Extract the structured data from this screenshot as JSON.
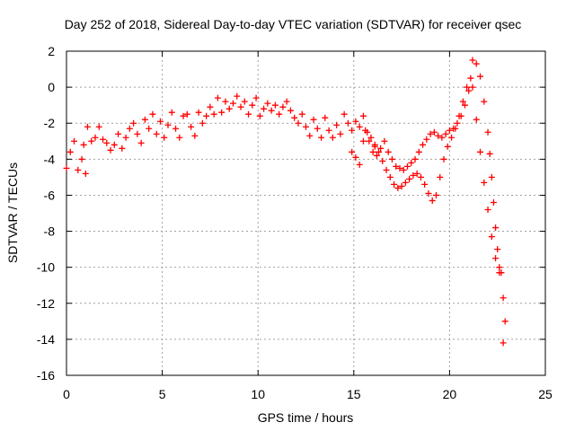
{
  "chart_data": {
    "type": "scatter",
    "title": "Day 252 of 2018, Sidereal Day-to-day VTEC variation (SDTVAR) for receiver qsec",
    "xlabel": "GPS time / hours",
    "ylabel": "SDTVAR / TECUs",
    "xlim": [
      0,
      25
    ],
    "ylim": [
      -16,
      2
    ],
    "xticks": [
      0,
      5,
      10,
      15,
      20,
      25
    ],
    "xtick_labels": [
      "0",
      "5",
      "10",
      "15",
      "20",
      "25"
    ],
    "yticks": [
      -16,
      -14,
      -12,
      -10,
      -8,
      -6,
      -4,
      -2,
      0,
      2
    ],
    "ytick_labels": [
      "-16",
      "-14",
      "-12",
      "-10",
      "-8",
      "-6",
      "-4",
      "-2",
      "0",
      "2"
    ],
    "grid": true,
    "marker": "+",
    "series": [
      {
        "name": "SDTVAR",
        "color": "#ff0000",
        "x": [
          0.0,
          0.2,
          0.4,
          0.6,
          0.8,
          0.9,
          1.0,
          1.1,
          1.3,
          1.5,
          1.7,
          1.9,
          2.1,
          2.3,
          2.5,
          2.7,
          2.9,
          3.1,
          3.3,
          3.5,
          3.7,
          3.9,
          4.1,
          4.3,
          4.5,
          4.7,
          4.9,
          5.1,
          5.3,
          5.5,
          5.7,
          5.9,
          6.1,
          6.3,
          6.5,
          6.7,
          6.9,
          7.1,
          7.3,
          7.5,
          7.7,
          7.9,
          8.1,
          8.3,
          8.5,
          8.7,
          8.9,
          9.1,
          9.3,
          9.5,
          9.7,
          9.9,
          10.1,
          10.3,
          10.5,
          10.7,
          10.9,
          11.1,
          11.3,
          11.5,
          11.7,
          11.9,
          12.1,
          12.3,
          12.5,
          12.7,
          12.9,
          13.1,
          13.3,
          13.5,
          13.7,
          13.9,
          14.1,
          14.3,
          14.5,
          14.7,
          14.9,
          15.1,
          15.3,
          15.5,
          15.6,
          15.8,
          16.0,
          16.1,
          16.2,
          16.4,
          16.6,
          16.8,
          17.0,
          17.2,
          17.4,
          17.6,
          17.8,
          18.0,
          18.2,
          18.4,
          18.6,
          18.8,
          19.0,
          19.2,
          19.4,
          19.6,
          19.8,
          20.0,
          20.2,
          20.4,
          20.6,
          20.8,
          21.0,
          21.2,
          21.4,
          21.6,
          21.8,
          22.0,
          22.1,
          22.2,
          22.3,
          22.4,
          22.5,
          22.6,
          22.7,
          22.8,
          22.9
        ],
        "y": [
          -4.5,
          -3.6,
          -3.0,
          -4.6,
          -4.0,
          -3.2,
          -4.8,
          -2.2,
          -3.0,
          -2.8,
          -2.2,
          -2.9,
          -3.1,
          -3.5,
          -3.2,
          -2.6,
          -3.4,
          -2.8,
          -2.3,
          -2.0,
          -2.6,
          -3.1,
          -1.8,
          -2.3,
          -1.5,
          -2.6,
          -1.9,
          -2.8,
          -2.1,
          -1.4,
          -2.3,
          -2.8,
          -1.6,
          -1.5,
          -2.2,
          -2.7,
          -1.4,
          -2.0,
          -1.6,
          -1.1,
          -1.5,
          -0.6,
          -1.4,
          -0.8,
          -1.2,
          -0.9,
          -0.5,
          -1.1,
          -0.8,
          -1.5,
          -1.0,
          -0.6,
          -1.6,
          -1.2,
          -0.9,
          -1.3,
          -1.0,
          -1.5,
          -1.1,
          -0.8,
          -1.3,
          -1.7,
          -2.0,
          -1.5,
          -2.2,
          -2.7,
          -1.8,
          -2.3,
          -2.8,
          -1.7,
          -2.4,
          -2.8,
          -2.1,
          -2.6,
          -1.5,
          -2.0,
          -2.4,
          -1.9,
          -2.2,
          -1.6,
          -2.4,
          -3.0,
          -3.6,
          -3.3,
          -3.8,
          -3.4,
          -3.0,
          -3.6,
          -4.0,
          -4.4,
          -4.5,
          -4.6,
          -4.4,
          -4.2,
          -4.0,
          -3.6,
          -3.2,
          -2.9,
          -2.6,
          -2.5,
          -2.7,
          -2.8,
          -2.6,
          -2.4,
          -2.3,
          -2.0,
          -1.6,
          -1.0,
          -0.2,
          1.5,
          1.3,
          0.6,
          -0.8,
          -2.5,
          -3.7,
          -5.0,
          -6.4,
          -7.8,
          -9.0,
          -10.0,
          -10.3,
          -11.7,
          -13.0
        ],
        "x2": [
          14.9,
          15.1,
          15.3,
          15.5,
          15.7,
          15.9,
          16.1,
          16.3,
          16.5,
          16.7,
          16.9,
          17.1,
          17.3,
          17.5,
          17.7,
          17.9,
          18.1,
          18.3,
          18.5,
          18.7,
          18.9,
          19.1,
          19.3,
          19.5,
          19.7,
          19.9,
          20.1,
          20.3,
          20.5,
          20.7,
          20.9,
          21.1,
          21.2,
          21.4,
          21.6,
          21.8,
          22.0,
          22.2,
          22.4,
          22.6,
          22.8
        ],
        "y2": [
          -3.6,
          -3.9,
          -4.3,
          -3.0,
          -2.5,
          -2.8,
          -3.2,
          -3.6,
          -4.1,
          -4.6,
          -5.0,
          -5.4,
          -5.6,
          -5.5,
          -5.3,
          -5.1,
          -4.9,
          -4.8,
          -5.0,
          -5.4,
          -5.9,
          -6.3,
          -6.0,
          -5.0,
          -4.0,
          -3.3,
          -2.8,
          -2.3,
          -1.6,
          -0.8,
          0.0,
          0.5,
          0.0,
          -1.8,
          -3.6,
          -5.3,
          -6.8,
          -8.3,
          -9.5,
          -10.3,
          -14.2
        ]
      }
    ]
  }
}
